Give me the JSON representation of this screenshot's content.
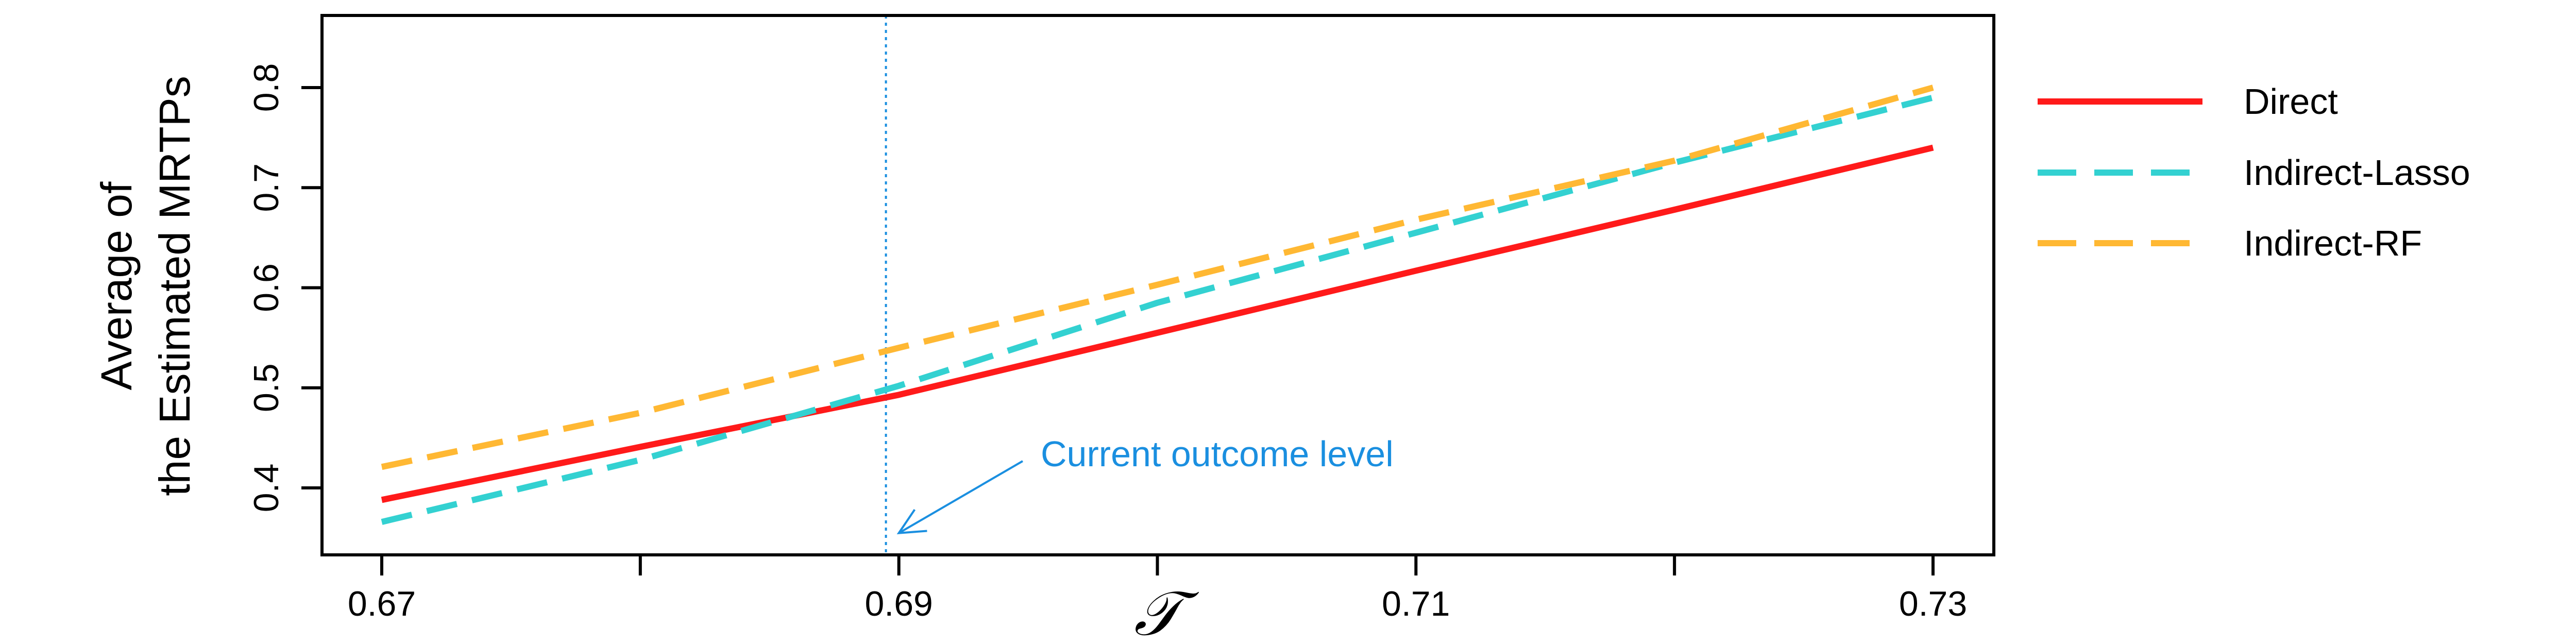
{
  "chart_data": {
    "type": "line",
    "title": "",
    "xlabel": "𝒯",
    "ylabel_lines": [
      "Average of",
      "the Estimated MRTPs"
    ],
    "xlim": [
      0.67,
      0.73
    ],
    "ylim": [
      0.35,
      0.85
    ],
    "x_ticks": [
      0.67,
      0.68,
      0.69,
      0.7,
      0.71,
      0.72,
      0.73
    ],
    "x_tick_labels": [
      "0.67",
      "",
      "0.69",
      "",
      "0.71",
      "",
      "0.73"
    ],
    "y_ticks": [
      0.4,
      0.5,
      0.6,
      0.7,
      0.8
    ],
    "y_tick_labels": [
      "0.4",
      "0.5",
      "0.6",
      "0.7",
      "0.8"
    ],
    "grid": false,
    "legend_position": "right, outside plot",
    "series": [
      {
        "name": "Direct",
        "color": "#ff1a1a",
        "dash": "solid",
        "x": [
          0.67,
          0.68,
          0.69,
          0.7,
          0.71,
          0.72,
          0.73
        ],
        "y": [
          0.388,
          0.441,
          0.493,
          0.555,
          0.617,
          0.678,
          0.74
        ]
      },
      {
        "name": "Indirect-Lasso",
        "color": "#33d1d1",
        "dash": "dashed",
        "x": [
          0.67,
          0.68,
          0.69,
          0.7,
          0.71,
          0.72,
          0.73
        ],
        "y": [
          0.366,
          0.428,
          0.502,
          0.585,
          0.655,
          0.725,
          0.79
        ]
      },
      {
        "name": "Indirect-RF",
        "color": "#ffb833",
        "dash": "dashed",
        "x": [
          0.67,
          0.68,
          0.69,
          0.7,
          0.71,
          0.72,
          0.73
        ],
        "y": [
          0.421,
          0.475,
          0.54,
          0.603,
          0.668,
          0.727,
          0.8
        ]
      }
    ],
    "reference_line": {
      "orientation": "vertical",
      "x": 0.6895,
      "color": "#1a8fe0",
      "style": "dotted"
    },
    "annotation": {
      "text": "Current outcome level",
      "color": "#1a8fe0",
      "arrow_to": [
        0.6895,
        0.36
      ],
      "text_at": [
        0.6828,
        0.4
      ]
    }
  }
}
